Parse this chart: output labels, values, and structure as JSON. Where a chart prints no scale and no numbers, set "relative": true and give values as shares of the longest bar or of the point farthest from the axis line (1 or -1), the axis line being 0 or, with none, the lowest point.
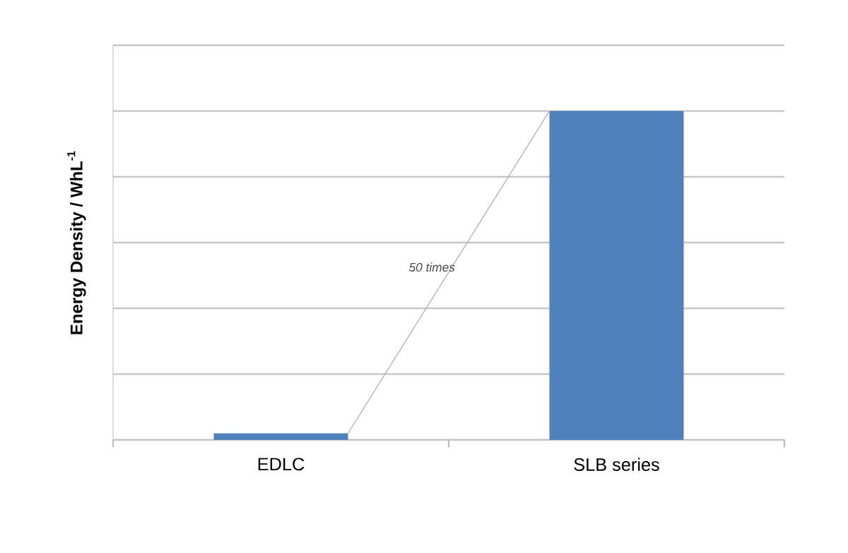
{
  "chart_data": {
    "type": "bar",
    "ylabel": "Energy Density / WhL$^{-1}$",
    "categories": [
      "EDLC",
      "SLB series"
    ],
    "values": [
      0.02,
      1
    ],
    "color": "#4f81bd",
    "relative": true,
    "grid": "y",
    "annotations": [
      "50 times"
    ]
  }
}
